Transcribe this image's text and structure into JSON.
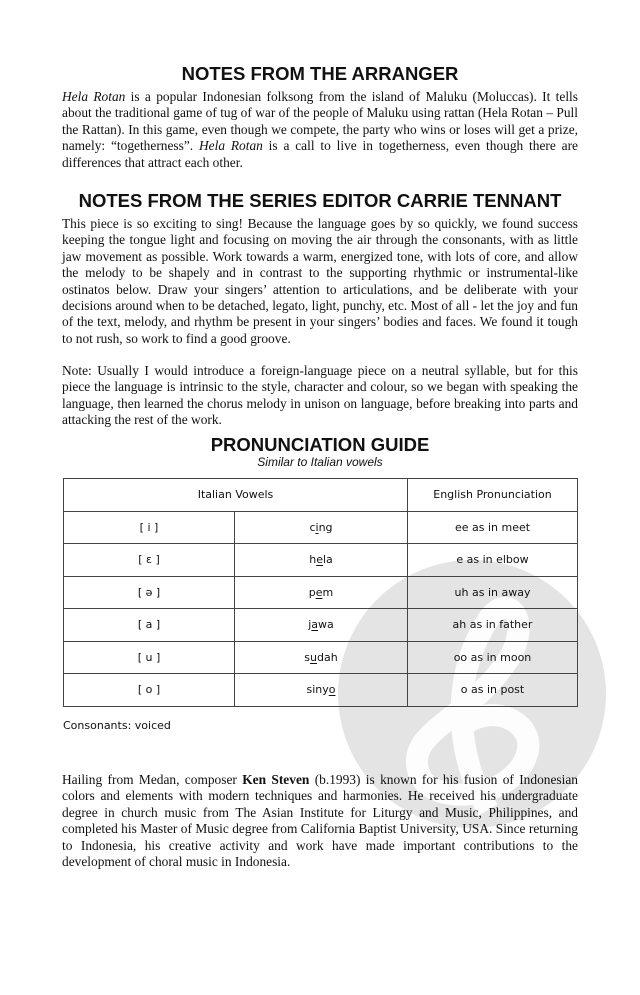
{
  "arranger": {
    "title": "NOTES FROM THE ARRANGER",
    "p1_italic1": "Hela Rotan",
    "p1_a": " is a popular Indonesian folksong from the island of Maluku (Moluccas). It tells about the traditional game of tug of war of the people of Maluku using rattan (Hela Rotan – Pull the Rattan). In this game, even though we compete, the party who wins or loses will get a prize, namely: “togetherness”. ",
    "p1_italic2": "Hela Rotan",
    "p1_b": " is a call to live in togetherness, even though there are differences that attract each other."
  },
  "editor": {
    "title": "NOTES FROM THE SERIES EDITOR CARRIE TENNANT",
    "p1": "This piece is so exciting to sing! Because the language goes by so quickly, we found success keeping the tongue light and focusing on moving the air through the consonants, with as little jaw movement as possible. Work towards a warm, energized tone, with lots of core, and allow the melody to be shapely and in contrast to the  supporting rhythmic or instrumental-like ostinatos below.  Draw your singers’ attention to articulations, and be deliberate with your decisions around when to be detached, legato, light, punchy, etc.  Most of all - let the joy and fun of the text, melody, and rhythm be present in your singers’ bodies and faces. We found it tough to not rush, so work to find a good groove.",
    "p2": "Note: Usually I would introduce a foreign-language piece on a neutral syllable, but for this piece the language is  intrinsic to the style, character and colour, so we began with speaking the language, then learned the chorus melody in unison on language, before breaking into parts and attacking the rest of the work."
  },
  "guide": {
    "title": "PRONUNCIATION GUIDE",
    "subtitle": "Similar to Italian vowels",
    "headers": [
      "Italian Vowels",
      "English Pronunciation"
    ],
    "rows": [
      {
        "ipa": "[ i ]",
        "pre": "c",
        "u": "i",
        "post": "ng",
        "english": "ee as in meet"
      },
      {
        "ipa": "[ ɛ ]",
        "pre": "h",
        "u": "e",
        "post": "la",
        "english": "e as in elbow"
      },
      {
        "ipa": "[ ə ]",
        "pre": "p",
        "u": "e",
        "post": "m",
        "english": "uh as in away"
      },
      {
        "ipa": "[ a ]",
        "pre": "j",
        "u": "a",
        "post": "wa",
        "english": "ah as in father"
      },
      {
        "ipa": "[ u ]",
        "pre": "s",
        "u": "u",
        "post": "dah",
        "english": "oo as in moon"
      },
      {
        "ipa": "[ o ]",
        "pre": "siny",
        "u": "o",
        "post": "",
        "english": "o as in post"
      }
    ],
    "consonants": "Consonants: voiced"
  },
  "bio": {
    "a": "Hailing from Medan, composer ",
    "name": "Ken Steven",
    "b": " (b.1993)  is known for his fusion of Indonesian colors and elements with modern techniques and harmonies. He received his undergraduate degree in church music from The Asian Institute for Liturgy and Music, Philippines, and completed his Master of Music degree from California Baptist University, USA. Since returning to Indonesia, his creative activity and work have made important contributions to the development of choral music in Indonesia."
  },
  "watermark": {
    "icon": "treble-clef-icon",
    "color": "#e4e4e4"
  }
}
